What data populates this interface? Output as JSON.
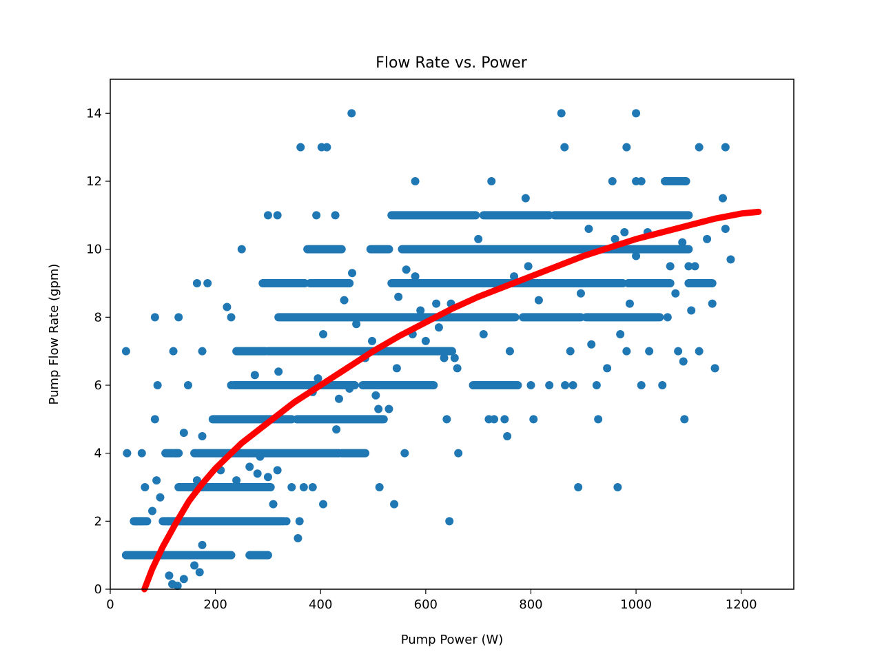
{
  "chart_data": {
    "type": "scatter",
    "title": "Flow Rate vs. Power",
    "xlabel": "Pump Power (W)",
    "ylabel": "Pump Flow Rate (gpm)",
    "xlim": [
      0,
      1300
    ],
    "ylim": [
      0,
      15
    ],
    "x_ticks": [
      0,
      200,
      400,
      600,
      800,
      1000,
      1200
    ],
    "y_ticks": [
      0,
      2,
      4,
      6,
      8,
      10,
      12,
      14
    ],
    "grid": false,
    "legend": "none",
    "series": [
      {
        "kind": "scatter",
        "color": "#1f77b4",
        "points": [
          [
            30,
            7
          ],
          [
            32,
            4
          ],
          [
            60,
            4
          ],
          [
            85,
            8
          ],
          [
            130,
            8
          ],
          [
            165,
            9
          ],
          [
            185,
            9
          ],
          [
            250,
            10
          ],
          [
            300,
            11
          ],
          [
            318,
            11
          ],
          [
            362,
            13
          ],
          [
            402,
            13
          ],
          [
            412,
            13
          ],
          [
            428,
            11
          ],
          [
            392,
            11
          ],
          [
            459,
            14
          ],
          [
            580,
            12
          ],
          [
            858,
            14
          ],
          [
            864,
            13
          ],
          [
            982,
            13
          ],
          [
            1000,
            14
          ],
          [
            1120,
            13
          ],
          [
            1170,
            13
          ],
          [
            725,
            12
          ],
          [
            955,
            12
          ],
          [
            1000,
            12
          ],
          [
            1010,
            12
          ],
          [
            50,
            2
          ],
          [
            57,
            2
          ],
          [
            66,
            3
          ],
          [
            88,
            3.2
          ],
          [
            95,
            2.7
          ],
          [
            80,
            2.3
          ],
          [
            110,
            2
          ],
          [
            125,
            4
          ],
          [
            140,
            4.6
          ],
          [
            165,
            3.2
          ],
          [
            175,
            4.5
          ],
          [
            210,
            3.5
          ],
          [
            175,
            7
          ],
          [
            230,
            6
          ],
          [
            222,
            8.3
          ],
          [
            230,
            8
          ],
          [
            120,
            7
          ],
          [
            148,
            6
          ],
          [
            90,
            6
          ],
          [
            85,
            5
          ],
          [
            112,
            0.4
          ],
          [
            118,
            0.15
          ],
          [
            128,
            0.1
          ],
          [
            140,
            0.3
          ],
          [
            160,
            0.7
          ],
          [
            170,
            0.5
          ],
          [
            175,
            1.3
          ],
          [
            240,
            3.2
          ],
          [
            265,
            3.6
          ],
          [
            275,
            6.3
          ],
          [
            280,
            3.4
          ],
          [
            285,
            3.9
          ],
          [
            300,
            3.3
          ],
          [
            310,
            2.5
          ],
          [
            318,
            3.5
          ],
          [
            320,
            6.4
          ],
          [
            335,
            2
          ],
          [
            345,
            3
          ],
          [
            357,
            1.5
          ],
          [
            360,
            2
          ],
          [
            368,
            3
          ],
          [
            385,
            3
          ],
          [
            385,
            5.8
          ],
          [
            395,
            6.2
          ],
          [
            405,
            2.5
          ],
          [
            405,
            7.5
          ],
          [
            430,
            4.7
          ],
          [
            435,
            5.6
          ],
          [
            445,
            8.5
          ],
          [
            455,
            5.9
          ],
          [
            460,
            9.3
          ],
          [
            468,
            7.8
          ],
          [
            485,
            6.8
          ],
          [
            498,
            7.3
          ],
          [
            505,
            5.7
          ],
          [
            510,
            5.3
          ],
          [
            512,
            3
          ],
          [
            530,
            5.3
          ],
          [
            540,
            2.5
          ],
          [
            545,
            6.5
          ],
          [
            548,
            8.6
          ],
          [
            560,
            4
          ],
          [
            563,
            9.4
          ],
          [
            570,
            8
          ],
          [
            575,
            7.5
          ],
          [
            580,
            9.2
          ],
          [
            590,
            8.2
          ],
          [
            600,
            7.3
          ],
          [
            620,
            8.4
          ],
          [
            625,
            7.7
          ],
          [
            635,
            6.8
          ],
          [
            640,
            5
          ],
          [
            645,
            2
          ],
          [
            648,
            8.4
          ],
          [
            655,
            6.8
          ],
          [
            660,
            6.5
          ],
          [
            662,
            4
          ],
          [
            700,
            10.3
          ],
          [
            710,
            7.5
          ],
          [
            720,
            5
          ],
          [
            730,
            5
          ],
          [
            750,
            5
          ],
          [
            755,
            4.5
          ],
          [
            760,
            7
          ],
          [
            768,
            9.2
          ],
          [
            790,
            11.5
          ],
          [
            795,
            9.5
          ],
          [
            800,
            6
          ],
          [
            805,
            5
          ],
          [
            815,
            8.5
          ],
          [
            835,
            6
          ],
          [
            865,
            6
          ],
          [
            875,
            7
          ],
          [
            880,
            6
          ],
          [
            890,
            3
          ],
          [
            895,
            8.7
          ],
          [
            910,
            10.6
          ],
          [
            915,
            7.2
          ],
          [
            925,
            6
          ],
          [
            928,
            5
          ],
          [
            945,
            6.5
          ],
          [
            960,
            10.3
          ],
          [
            965,
            3
          ],
          [
            970,
            7.5
          ],
          [
            978,
            10.5
          ],
          [
            982,
            7
          ],
          [
            988,
            8.4
          ],
          [
            1000,
            9.8
          ],
          [
            1010,
            6
          ],
          [
            1022,
            10.5
          ],
          [
            1025,
            7
          ],
          [
            1050,
            6
          ],
          [
            1060,
            8
          ],
          [
            1065,
            9.5
          ],
          [
            1075,
            8.7
          ],
          [
            1080,
            7
          ],
          [
            1088,
            10.2
          ],
          [
            1090,
            6.7
          ],
          [
            1092,
            5
          ],
          [
            1100,
            9.5
          ],
          [
            1105,
            8.2
          ],
          [
            1112,
            9.5
          ],
          [
            1120,
            7
          ],
          [
            1135,
            10.3
          ],
          [
            1145,
            8.4
          ],
          [
            1150,
            6.5
          ],
          [
            1165,
            11.5
          ],
          [
            1170,
            10.6
          ],
          [
            1180,
            9.7
          ]
        ],
        "bands": [
          {
            "y": 1,
            "x": [
              30,
              230
            ]
          },
          {
            "y": 1,
            "x": [
              265,
              300
            ]
          },
          {
            "y": 2,
            "x": [
              45,
              70
            ]
          },
          {
            "y": 2,
            "x": [
              100,
              330
            ]
          },
          {
            "y": 3,
            "x": [
              130,
              305
            ]
          },
          {
            "y": 4,
            "x": [
              105,
              130
            ]
          },
          {
            "y": 4,
            "x": [
              160,
              435
            ]
          },
          {
            "y": 4,
            "x": [
              440,
              485
            ]
          },
          {
            "y": 5,
            "x": [
              195,
              345
            ]
          },
          {
            "y": 5,
            "x": [
              355,
              520
            ]
          },
          {
            "y": 6,
            "x": [
              235,
              465
            ]
          },
          {
            "y": 6,
            "x": [
              480,
              615
            ]
          },
          {
            "y": 6,
            "x": [
              690,
              775
            ]
          },
          {
            "y": 7,
            "x": [
              240,
              295
            ]
          },
          {
            "y": 7,
            "x": [
              300,
              650
            ]
          },
          {
            "y": 8,
            "x": [
              320,
              770
            ]
          },
          {
            "y": 8,
            "x": [
              785,
              895
            ]
          },
          {
            "y": 8,
            "x": [
              905,
              1045
            ]
          },
          {
            "y": 9,
            "x": [
              290,
              370
            ]
          },
          {
            "y": 9,
            "x": [
              380,
              455
            ]
          },
          {
            "y": 9,
            "x": [
              535,
              975
            ]
          },
          {
            "y": 9,
            "x": [
              985,
              1065
            ]
          },
          {
            "y": 9,
            "x": [
              1100,
              1145
            ]
          },
          {
            "y": 10,
            "x": [
              375,
              440
            ]
          },
          {
            "y": 10,
            "x": [
              495,
              530
            ]
          },
          {
            "y": 10,
            "x": [
              555,
              1100
            ]
          },
          {
            "y": 11,
            "x": [
              535,
              695
            ]
          },
          {
            "y": 11,
            "x": [
              710,
              835
            ]
          },
          {
            "y": 11,
            "x": [
              845,
              1100
            ]
          },
          {
            "y": 12,
            "x": [
              1055,
              1095
            ]
          }
        ]
      },
      {
        "kind": "fit",
        "color": "#ff0000",
        "points": [
          [
            65,
            0
          ],
          [
            80,
            0.6
          ],
          [
            100,
            1.25
          ],
          [
            125,
            1.95
          ],
          [
            150,
            2.6
          ],
          [
            175,
            3.1
          ],
          [
            200,
            3.55
          ],
          [
            250,
            4.3
          ],
          [
            300,
            4.9
          ],
          [
            350,
            5.5
          ],
          [
            400,
            6.0
          ],
          [
            450,
            6.5
          ],
          [
            500,
            7.0
          ],
          [
            550,
            7.45
          ],
          [
            600,
            7.85
          ],
          [
            650,
            8.25
          ],
          [
            700,
            8.6
          ],
          [
            750,
            8.9
          ],
          [
            800,
            9.2
          ],
          [
            850,
            9.5
          ],
          [
            900,
            9.8
          ],
          [
            950,
            10.05
          ],
          [
            1000,
            10.3
          ],
          [
            1050,
            10.5
          ],
          [
            1100,
            10.7
          ],
          [
            1150,
            10.9
          ],
          [
            1200,
            11.05
          ],
          [
            1233,
            11.1
          ]
        ]
      }
    ]
  }
}
